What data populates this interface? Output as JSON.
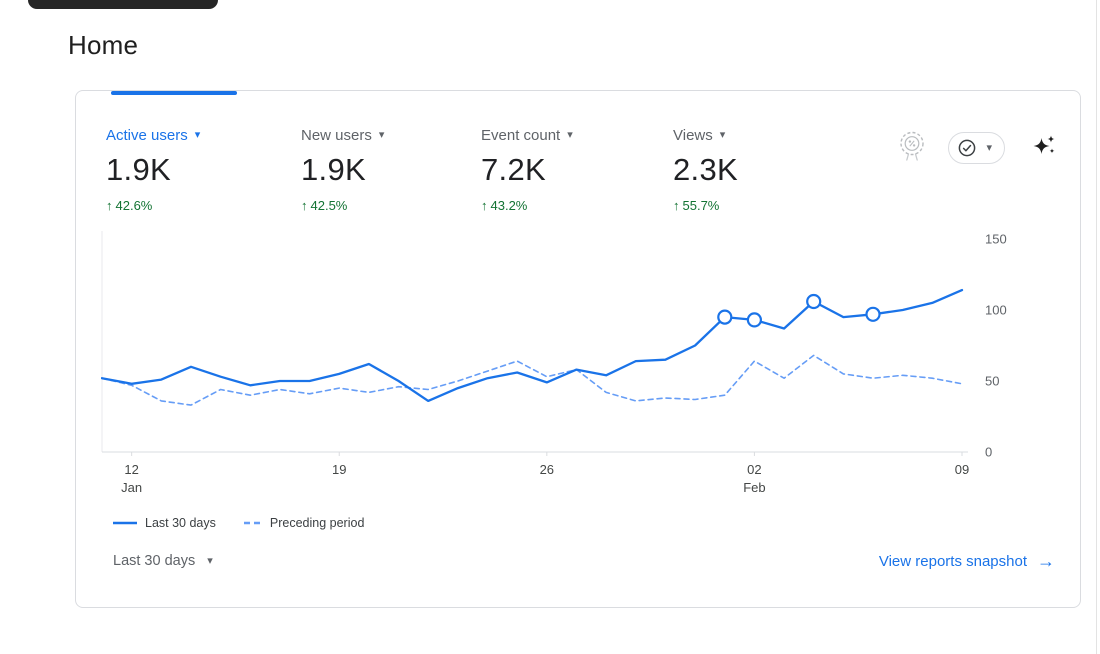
{
  "page": {
    "title": "Home"
  },
  "card": {
    "metrics": [
      {
        "label": "Active users",
        "value": "1.9K",
        "delta": "42.6%",
        "active": true
      },
      {
        "label": "New users",
        "value": "1.9K",
        "delta": "42.5%",
        "active": false
      },
      {
        "label": "Event count",
        "value": "7.2K",
        "delta": "43.2%",
        "active": false
      },
      {
        "label": "Views",
        "value": "2.3K",
        "delta": "55.7%",
        "active": false
      }
    ],
    "legend": [
      {
        "label": "Last 30 days",
        "style": "solid"
      },
      {
        "label": "Preceding period",
        "style": "dashed"
      }
    ],
    "footer": {
      "range_label": "Last 30 days",
      "link_label": "View reports snapshot"
    }
  },
  "icons": {
    "medal": "benchmarking-medal-icon",
    "check": "data-quality-check-icon",
    "sparkle": "insights-sparkle-icon"
  },
  "colors": {
    "accent_blue": "#1a73e8",
    "delta_green": "#137333",
    "solid_line": "#1a73e8",
    "dashed_line": "#669df6",
    "axis_text": "#5f6368"
  },
  "chart_data": {
    "type": "line",
    "title": "",
    "ylim": [
      0,
      150
    ],
    "y_ticks": [
      0,
      50,
      100,
      150
    ],
    "x_ticks": [
      {
        "label": "12",
        "sub": "Jan",
        "i": 1
      },
      {
        "label": "19",
        "i": 8
      },
      {
        "label": "26",
        "i": 15
      },
      {
        "label": "02",
        "sub": "Feb",
        "i": 22
      },
      {
        "label": "09",
        "i": 29
      }
    ],
    "legend_position": "bottom-left",
    "grid": false,
    "series": [
      {
        "name": "Last 30 days",
        "style": "solid",
        "color": "#1a73e8",
        "values": [
          52,
          48,
          51,
          60,
          53,
          47,
          50,
          50,
          55,
          62,
          50,
          36,
          45,
          52,
          56,
          49,
          58,
          54,
          64,
          65,
          75,
          95,
          93,
          87,
          106,
          95,
          97,
          100,
          105,
          114
        ],
        "markers": [
          21,
          22,
          24,
          26
        ]
      },
      {
        "name": "Preceding period",
        "style": "dashed",
        "color": "#669df6",
        "values": [
          52,
          47,
          36,
          33,
          44,
          40,
          44,
          41,
          45,
          42,
          46,
          44,
          50,
          57,
          64,
          53,
          58,
          42,
          36,
          38,
          37,
          40,
          64,
          52,
          68,
          55,
          52,
          54,
          52,
          48
        ]
      }
    ]
  }
}
